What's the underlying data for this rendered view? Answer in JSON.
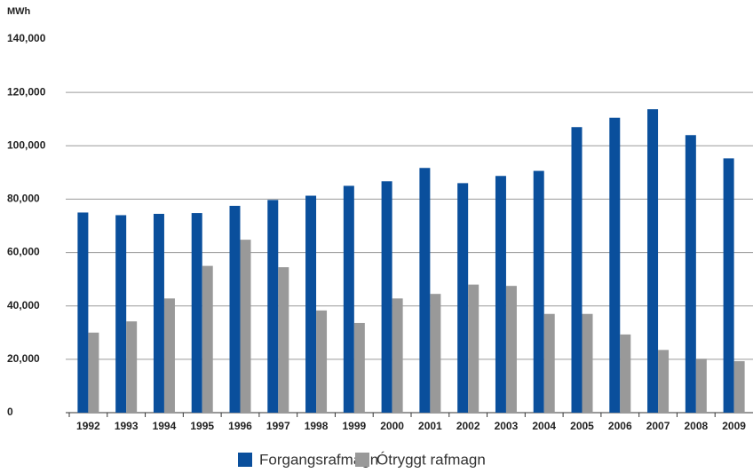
{
  "chart_data": {
    "type": "bar",
    "y_axis_label": "MWh",
    "categories": [
      "1992",
      "1993",
      "1994",
      "1995",
      "1996",
      "1997",
      "1998",
      "1999",
      "2000",
      "2001",
      "2002",
      "2003",
      "2004",
      "2005",
      "2006",
      "2007",
      "2008",
      "2009"
    ],
    "series": [
      {
        "name": "Forgangsrafmagn",
        "color": "#0a4f9c",
        "values": [
          75000,
          74000,
          74500,
          74800,
          77500,
          79700,
          81300,
          85000,
          86700,
          91700,
          86000,
          88700,
          90600,
          107000,
          110500,
          113700,
          104000,
          95300
        ]
      },
      {
        "name": "Ótryggt rafmagn",
        "color": "#999999",
        "values": [
          30000,
          34200,
          42800,
          55000,
          64800,
          54500,
          38300,
          33600,
          42800,
          44500,
          48000,
          47500,
          37000,
          37000,
          29300,
          23500,
          20200,
          19300
        ]
      }
    ],
    "ylim": [
      0,
      140000
    ],
    "yticks": [
      0,
      {
        "value": 20000,
        "label": "20,000"
      },
      {
        "value": 40000,
        "label": "40,000"
      },
      {
        "value": 60000,
        "label": "60,000"
      },
      {
        "value": 80000,
        "label": "80,000"
      },
      {
        "value": 100000,
        "label": "100,000"
      },
      {
        "value": 120000,
        "label": "120,000"
      },
      {
        "value": 140000,
        "label": "140,000"
      }
    ],
    "grid": true,
    "legend": "bottom"
  }
}
